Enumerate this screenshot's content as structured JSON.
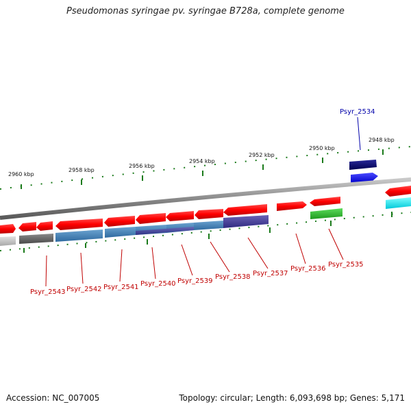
{
  "title": "Pseudomonas syringae pv. syringae B728a, complete genome",
  "footer": {
    "accession": "Accession: NC_007005",
    "summary": "Topology: circular; Length: 6,093,698 bp; Genes: 5,171"
  },
  "ruler_labels": [
    "2960 kbp",
    "2958 kbp",
    "2956 kbp",
    "2954 kbp",
    "2952 kbp",
    "2950 kbp",
    "2948 kbp"
  ],
  "gene_labels": [
    {
      "text": "Psyr_2534",
      "color": "#0000aa"
    },
    {
      "text": "Psyr_2535",
      "color": "#c00000"
    },
    {
      "text": "Psyr_2536",
      "color": "#c00000"
    },
    {
      "text": "Psyr_2537",
      "color": "#c00000"
    },
    {
      "text": "Psyr_2538",
      "color": "#c00000"
    },
    {
      "text": "Psyr_2539",
      "color": "#c00000"
    },
    {
      "text": "Psyr_2540",
      "color": "#c00000"
    },
    {
      "text": "Psyr_2541",
      "color": "#c00000"
    },
    {
      "text": "Psyr_2542",
      "color": "#c00000"
    },
    {
      "text": "Psyr_2543",
      "color": "#c00000"
    }
  ]
}
